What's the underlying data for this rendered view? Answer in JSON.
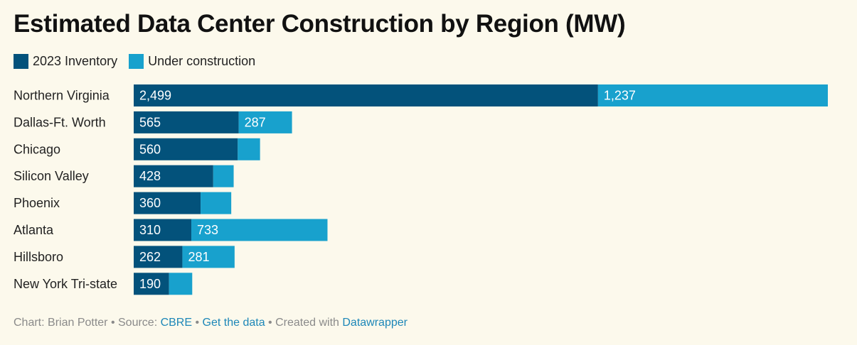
{
  "chart_data": {
    "type": "bar",
    "orientation": "horizontal",
    "stacked": true,
    "title": "Estimated Data Center Construction by Region (MW)",
    "categories": [
      "Northern Virginia",
      "Dallas-Ft. Worth",
      "Chicago",
      "Silicon Valley",
      "Phoenix",
      "Atlanta",
      "Hillsboro",
      "New York Tri-state"
    ],
    "series": [
      {
        "name": "2023 Inventory",
        "color": "#03527b",
        "values": [
          2499,
          565,
          560,
          428,
          360,
          310,
          262,
          190
        ],
        "labels": [
          "2,499",
          "565",
          "560",
          "428",
          "360",
          "310",
          "262",
          "190"
        ]
      },
      {
        "name": "Under construction",
        "color": "#18a1cd",
        "values": [
          1237,
          287,
          120,
          110,
          165,
          733,
          281,
          125
        ],
        "labels": [
          "1,237",
          "287",
          "",
          "",
          "",
          "733",
          "281",
          ""
        ]
      }
    ],
    "xlim": [
      0,
      3736
    ],
    "grid": false,
    "legend": "top-left"
  },
  "footer": {
    "prefix": "Chart: Brian Potter • Source: ",
    "source_link": "CBRE",
    "sep": " • ",
    "data_link": "Get the data",
    "created": " • Created with ",
    "tool_link": "Datawrapper"
  }
}
